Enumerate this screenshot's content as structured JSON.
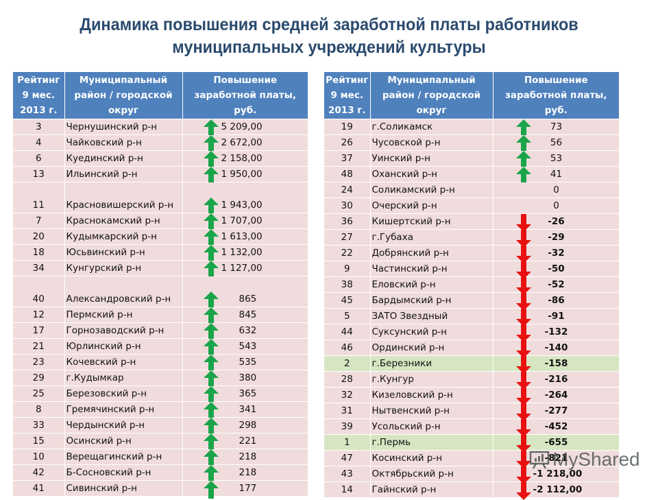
{
  "title": {
    "line1": "Динамика  повышения средней заработной платы работников",
    "line2": "муниципальных учреждений культуры"
  },
  "columns": {
    "rank": "Рейтинг 9 мес. 2013 г.",
    "district": "Муниципальный район / городской округ",
    "increase": "Повышение заработной платы, руб."
  },
  "colors": {
    "header_bg": "#4f81bd",
    "row_bg": "#f0dcdc",
    "highlight_bg": "#d6e6c2",
    "up_arrow": "#1aa54a",
    "down_arrow": "#e81010",
    "title": "#2b4a6e"
  },
  "left_table": {
    "rows": [
      {
        "rank": "3",
        "name": "Чернушинский р-н",
        "value": "5 209,00",
        "trend": "up"
      },
      {
        "rank": "4",
        "name": "Чайковский р-н",
        "value": "2 672,00",
        "trend": "up"
      },
      {
        "rank": "6",
        "name": "Куединский р-н",
        "value": "2 158,00",
        "trend": "up"
      },
      {
        "rank": "13",
        "name": "Ильинский р-н",
        "value": "1 950,00",
        "trend": "up"
      },
      {
        "rank": "11",
        "name": "Красновишерский р-н",
        "value": "1 943,00",
        "trend": "up"
      },
      {
        "rank": "7",
        "name": "Краснокамский р-н",
        "value": "1 707,00",
        "trend": "up"
      },
      {
        "rank": "20",
        "name": "Кудымкарский р-н",
        "value": "1 613,00",
        "trend": "up"
      },
      {
        "rank": "18",
        "name": "Юсьвинский р-н",
        "value": "1 132,00",
        "trend": "up"
      },
      {
        "rank": "34",
        "name": "Кунгурский р-н",
        "value": "1 127,00",
        "trend": "up"
      },
      {
        "rank": "40",
        "name": "Александровский р-н",
        "value": "865",
        "trend": "up"
      },
      {
        "rank": "12",
        "name": "Пермский  р-н",
        "value": "845",
        "trend": "up"
      },
      {
        "rank": "17",
        "name": "Горнозаводский р-н",
        "value": "632",
        "trend": "up"
      },
      {
        "rank": "21",
        "name": "Юрлинский р-н",
        "value": "543",
        "trend": "up"
      },
      {
        "rank": "23",
        "name": "Кочевский р-н",
        "value": "535",
        "trend": "up"
      },
      {
        "rank": "29",
        "name": "г.Кудымкар",
        "value": "380",
        "trend": "up"
      },
      {
        "rank": "25",
        "name": "Березовский р-н",
        "value": "365",
        "trend": "up"
      },
      {
        "rank": "8",
        "name": "Гремячинский р-н",
        "value": "341",
        "trend": "up"
      },
      {
        "rank": "33",
        "name": "Чердынский р-н",
        "value": "298",
        "trend": "up"
      },
      {
        "rank": "15",
        "name": "Осинский р-н",
        "value": "221",
        "trend": "up"
      },
      {
        "rank": "10",
        "name": "Верещагинский р-н",
        "value": "218",
        "trend": "up"
      },
      {
        "rank": "42",
        "name": "Б-Сосновский р-н",
        "value": "218",
        "trend": "up"
      },
      {
        "rank": "41",
        "name": "Сивинский р-н",
        "value": "177",
        "trend": "up"
      }
    ]
  },
  "right_table": {
    "rows": [
      {
        "rank": "19",
        "name": "г.Соликамск",
        "value": "73",
        "trend": "up"
      },
      {
        "rank": "26",
        "name": "Чусовской р-н",
        "value": "56",
        "trend": "up"
      },
      {
        "rank": "37",
        "name": "Уинский р-н",
        "value": "53",
        "trend": "up"
      },
      {
        "rank": "48",
        "name": "Оханский р-н",
        "value": "41",
        "trend": "up"
      },
      {
        "rank": "24",
        "name": "Соликамский р-н",
        "value": "0",
        "trend": "none"
      },
      {
        "rank": "30",
        "name": "Очерский р-н",
        "value": "0",
        "trend": "none"
      },
      {
        "rank": "36",
        "name": "Кишертский р-н",
        "value": "-26",
        "trend": "down"
      },
      {
        "rank": "27",
        "name": "г.Губаха",
        "value": "-29",
        "trend": "down"
      },
      {
        "rank": "22",
        "name": "Добрянский р-н",
        "value": "-32",
        "trend": "down"
      },
      {
        "rank": "9",
        "name": "Частинский р-н",
        "value": "-50",
        "trend": "down"
      },
      {
        "rank": "38",
        "name": "Еловский р-н",
        "value": "-52",
        "trend": "down"
      },
      {
        "rank": "45",
        "name": "Бардымский р-н",
        "value": "-86",
        "trend": "down"
      },
      {
        "rank": "5",
        "name": "ЗАТО Звездный",
        "value": "-91",
        "trend": "down"
      },
      {
        "rank": "44",
        "name": "Суксунский р-н",
        "value": "-132",
        "trend": "down"
      },
      {
        "rank": "46",
        "name": "Ординский р-н",
        "value": "-140",
        "trend": "down"
      },
      {
        "rank": "2",
        "name": "г.Березники",
        "value": "-158",
        "trend": "down",
        "highlight": true
      },
      {
        "rank": "28",
        "name": "г.Кунгур",
        "value": "-216",
        "trend": "down"
      },
      {
        "rank": "32",
        "name": "Кизеловский р-н",
        "value": "-264",
        "trend": "down"
      },
      {
        "rank": "31",
        "name": "Нытвенский р-н",
        "value": "-277",
        "trend": "down"
      },
      {
        "rank": "39",
        "name": "Усольский р-н",
        "value": "-452",
        "trend": "down"
      },
      {
        "rank": "1",
        "name": "г.Пермь",
        "value": "-655",
        "trend": "down",
        "highlight": true
      },
      {
        "rank": "47",
        "name": "Косинский р-н",
        "value": "-821",
        "trend": "down"
      },
      {
        "rank": "43",
        "name": "Октябрьский р-н",
        "value": "-1 218,00",
        "trend": "down"
      },
      {
        "rank": "14",
        "name": "Гайнский р-н",
        "value": "-2 112,00",
        "trend": "down"
      }
    ]
  },
  "watermark": "MyShared"
}
